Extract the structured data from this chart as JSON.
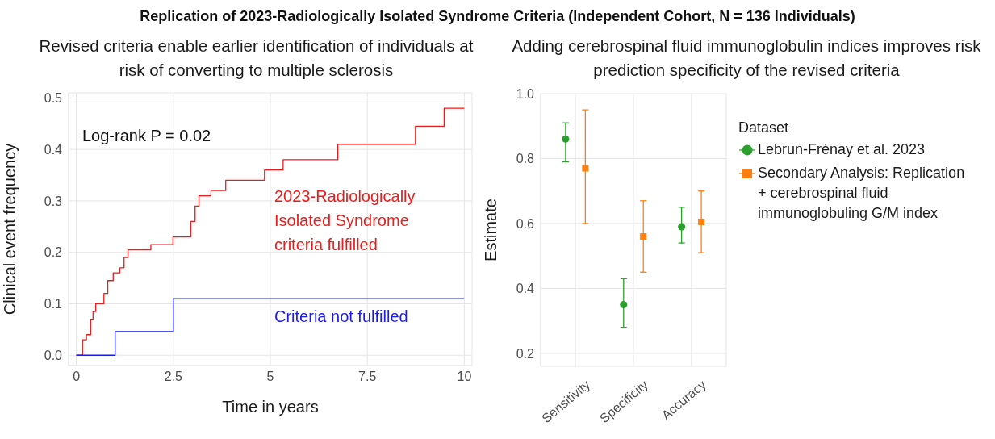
{
  "chart_data": [
    {
      "type": "step",
      "title": "Replication of 2023-Radiologically Isolated Syndrome Criteria (Independent Cohort, N = 136 Individuals)",
      "subtitle": "Revised criteria enable earlier identification of individuals at risk of converting to multiple sclerosis",
      "xlabel": "Time in years",
      "ylabel": "Clinical event frequency",
      "series": [
        {
          "name": "2023-Radiologically Isolated Syndrome criteria fulfilled",
          "color": "#ee1c1c",
          "x": [
            0,
            0.16,
            0.26,
            0.37,
            0.43,
            0.5,
            0.71,
            0.81,
            0.95,
            1.12,
            1.23,
            1.33,
            1.92,
            2.49,
            2.95,
            3.06,
            3.16,
            3.47,
            3.85,
            4.85,
            5.33,
            6.74,
            8.74,
            9.48,
            10
          ],
          "values": [
            0,
            0.03,
            0.04,
            0.07,
            0.085,
            0.1,
            0.12,
            0.145,
            0.16,
            0.17,
            0.19,
            0.205,
            0.215,
            0.23,
            0.26,
            0.29,
            0.31,
            0.32,
            0.34,
            0.36,
            0.38,
            0.41,
            0.445,
            0.48,
            0.48
          ]
        },
        {
          "name": "Criteria not fulfilled",
          "color": "#1c1ce6",
          "x": [
            0,
            1.0,
            2.5,
            10
          ],
          "values": [
            0,
            0.046,
            0.11,
            0.11
          ]
        }
      ],
      "xlim": [
        -0.2,
        10.2
      ],
      "xticks": [
        0,
        2.5,
        5,
        7.5,
        10
      ],
      "ylim": [
        -0.02,
        0.51
      ],
      "yticks": [
        {
          "value": 0,
          "label": "0.0"
        },
        0.1,
        0.2,
        0.3,
        0.4,
        0.5
      ],
      "grid": true,
      "legend": false,
      "annotations": [
        "Log-rank P = 0.02"
      ]
    },
    {
      "type": "scatter",
      "title": "Adding cerebrospinal fluid immunoglobulin indices improves risk prediction specificity of the revised criteria",
      "ylabel": "Estimate",
      "legend_title": "Dataset",
      "legend": "right",
      "categories": [
        "Sensitivity",
        "Specificity",
        "Accuracy"
      ],
      "series": [
        {
          "name": "Lebrun-Frénay et al. 2023",
          "color": "#2ca02c",
          "marker": "circle",
          "values": [
            0.86,
            0.35,
            0.59
          ],
          "errors": [
            [
              0.79,
              0.91
            ],
            [
              0.28,
              0.43
            ],
            [
              0.54,
              0.65
            ]
          ]
        },
        {
          "name": "Secondary Analysis: Replication + cerebrospinal fluid immunoglobuling G/M index",
          "color": "#ff7f0e",
          "marker": "square",
          "values": [
            0.77,
            0.56,
            0.605
          ],
          "errors": [
            [
              0.6,
              0.95
            ],
            [
              0.45,
              0.67
            ],
            [
              0.51,
              0.7
            ]
          ]
        }
      ],
      "ylim": [
        0.16,
        1.0
      ],
      "yticks": [
        0.2,
        0.4,
        0.6,
        0.8,
        {
          "value": 1.0,
          "label": "1.0"
        }
      ],
      "grid": true
    }
  ]
}
